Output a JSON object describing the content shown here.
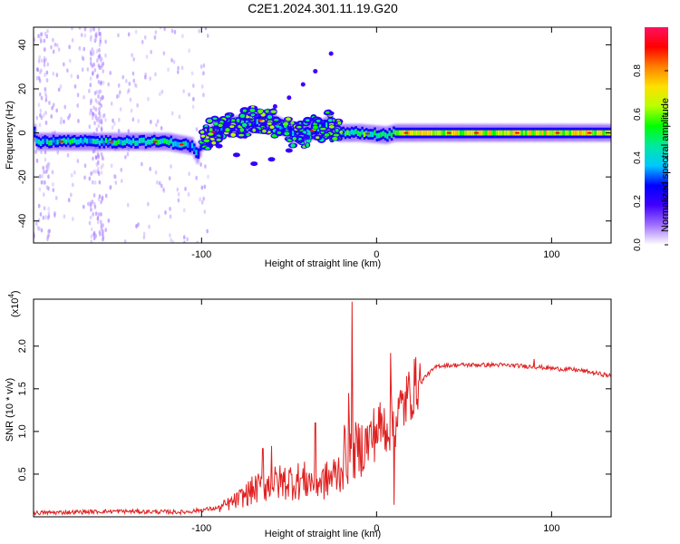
{
  "figure_title": "C2E1.2024.301.11.19.G20",
  "chart_data": [
    {
      "type": "heatmap",
      "xlabel": "Height of straight line (km)",
      "ylabel": "Frequency (Hz)",
      "xlim": [
        -196,
        134
      ],
      "ylim": [
        -50,
        48
      ],
      "x_ticks": [
        -100,
        0,
        100
      ],
      "y_ticks": [
        -40,
        -20,
        0,
        20,
        40
      ],
      "colorbar": {
        "label": "Normalized spectral amplitude",
        "range": [
          0.0,
          1.0
        ],
        "ticks": [
          0.0,
          0.2,
          0.4,
          0.6,
          0.8
        ],
        "tick_labels": [
          "0.0",
          "0.2",
          "0.4",
          "0.6",
          "0.8"
        ],
        "colors": [
          "#ffffff",
          "#a070ff",
          "#4000ff",
          "#0000ff",
          "#00c8ff",
          "#00e8a0",
          "#00ff00",
          "#b8ff00",
          "#ffe000",
          "#ff8000",
          "#ff0000",
          "#ff1060"
        ]
      },
      "ridge": [
        [
          -195,
          -4
        ],
        [
          -160,
          -4
        ],
        [
          -120,
          -4
        ],
        [
          -106,
          -6
        ],
        [
          -103,
          -10
        ],
        [
          -100,
          -4
        ],
        [
          -95,
          0
        ],
        [
          -85,
          3
        ],
        [
          -75,
          5
        ],
        [
          -65,
          6
        ],
        [
          -58,
          4
        ],
        [
          -50,
          1
        ],
        [
          -45,
          -1
        ],
        [
          -40,
          0
        ],
        [
          -33,
          2
        ],
        [
          -28,
          4
        ],
        [
          -22,
          0
        ],
        [
          -10,
          0
        ],
        [
          5,
          -1
        ],
        [
          10,
          0
        ],
        [
          40,
          0
        ],
        [
          90,
          0
        ],
        [
          134,
          0
        ]
      ],
      "scatter_branch": [
        [
          -90,
          -6
        ],
        [
          -80,
          -10
        ],
        [
          -70,
          -14
        ],
        [
          -60,
          -12
        ],
        [
          -50,
          -8
        ],
        [
          -40,
          -2
        ]
      ],
      "upper_branch": [
        [
          -58,
          12
        ],
        [
          -50,
          16
        ],
        [
          -42,
          22
        ],
        [
          -35,
          28
        ],
        [
          -26,
          36
        ]
      ]
    },
    {
      "type": "line",
      "xlabel": "Height of straight line (km)",
      "ylabel": "SNR (10 * v/v)",
      "multiplier": "(x10",
      "multiplier_exp": "4",
      "multiplier_close": ")",
      "xlim": [
        -196,
        134
      ],
      "ylim": [
        0,
        2.55
      ],
      "x_ticks": [
        -100,
        0,
        100
      ],
      "y_ticks": [
        0.5,
        1.0,
        1.5,
        2.0
      ],
      "y_tick_labels": [
        "0.5",
        "1.0",
        "1.5",
        "2.0"
      ],
      "series": [
        {
          "color": "#e02020",
          "anchors": [
            [
              -196,
              0.02
            ],
            [
              -150,
              0.04
            ],
            [
              -110,
              0.03
            ],
            [
              -90,
              0.08
            ],
            [
              -80,
              0.15
            ],
            [
              -70,
              0.25
            ],
            [
              -60,
              0.3
            ],
            [
              -50,
              0.33
            ],
            [
              -40,
              0.33
            ],
            [
              -30,
              0.32
            ],
            [
              -22,
              0.4
            ],
            [
              -17,
              0.6
            ],
            [
              -12,
              0.7
            ],
            [
              -5,
              0.8
            ],
            [
              0,
              0.95
            ],
            [
              10,
              1.05
            ],
            [
              20,
              1.4
            ],
            [
              28,
              1.65
            ],
            [
              35,
              1.77
            ],
            [
              50,
              1.78
            ],
            [
              70,
              1.78
            ],
            [
              90,
              1.76
            ],
            [
              100,
              1.74
            ],
            [
              115,
              1.72
            ],
            [
              134,
              1.65
            ]
          ],
          "spikes": [
            [
              -14,
              2.52
            ],
            [
              8,
              1.92
            ],
            [
              -16,
              1.45
            ],
            [
              -35,
              1.1
            ],
            [
              -60,
              0.83
            ],
            [
              -65,
              0.8
            ],
            [
              10,
              0.14
            ],
            [
              90,
              1.85
            ]
          ]
        }
      ]
    }
  ]
}
